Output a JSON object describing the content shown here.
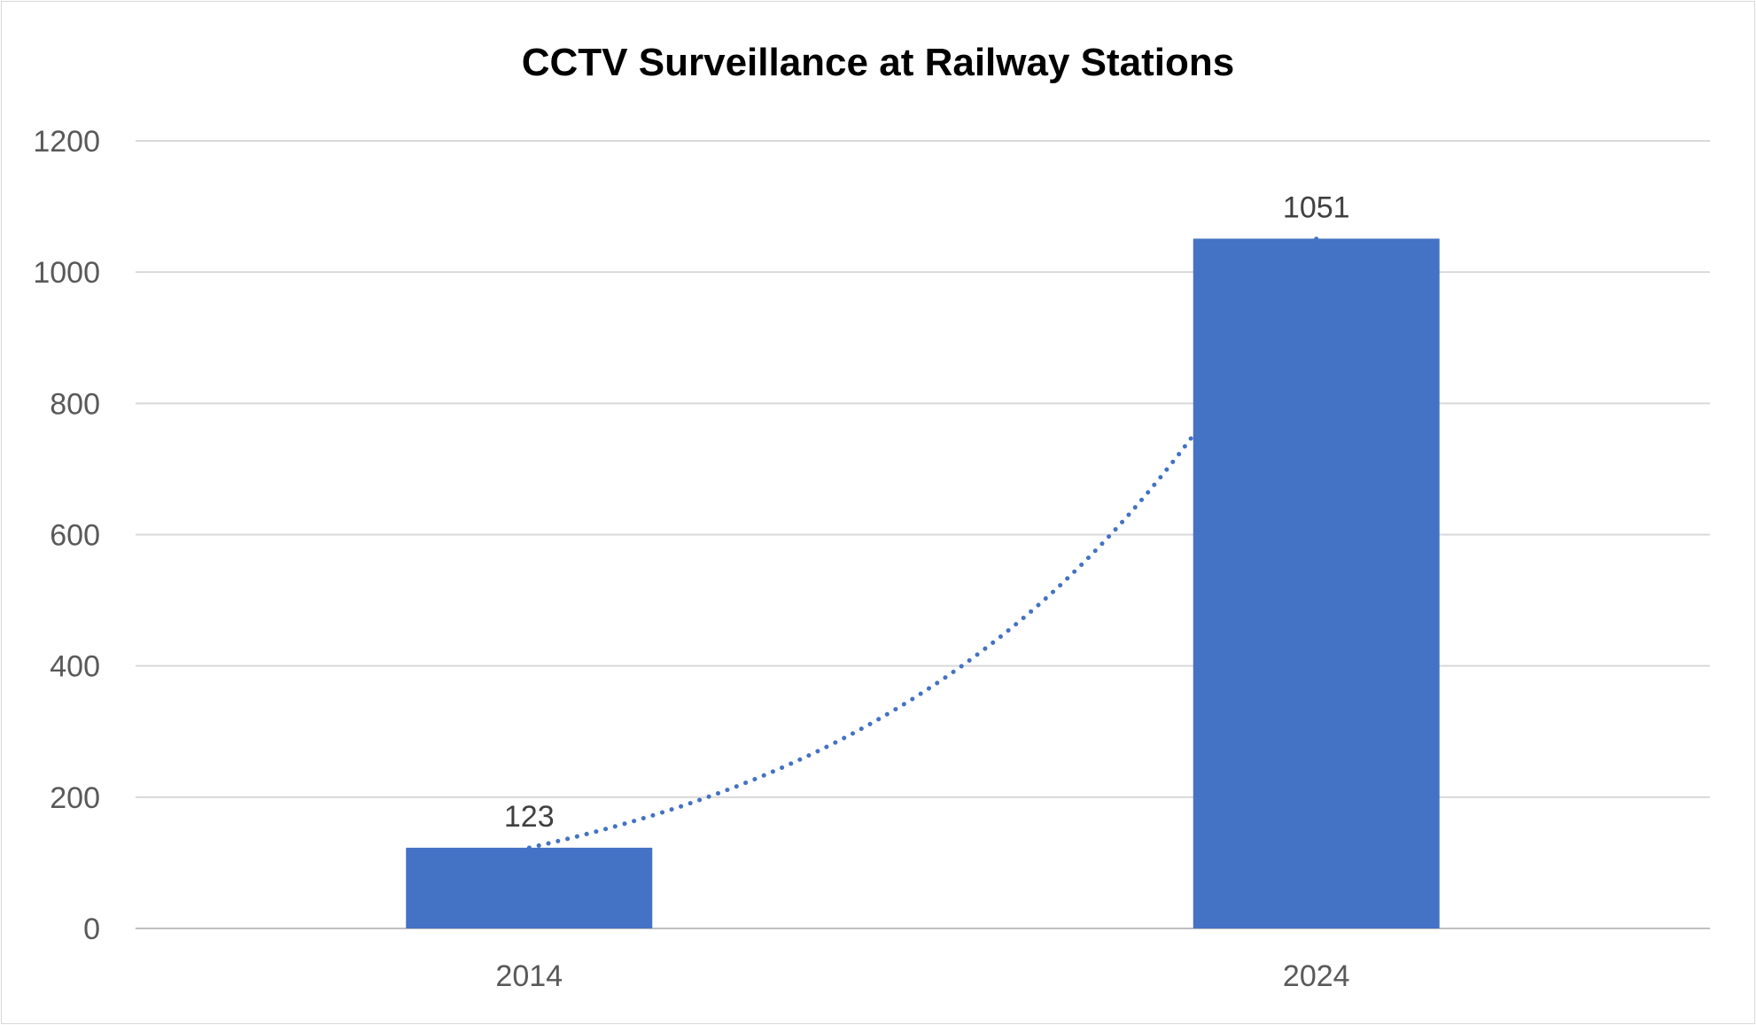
{
  "chart_data": {
    "type": "bar",
    "title": "CCTV Surveillance at Railway Stations",
    "xlabel": "",
    "ylabel": "",
    "categories": [
      "2014",
      "2024"
    ],
    "series": [
      {
        "values": [
          123,
          1051
        ]
      }
    ],
    "data_labels": [
      "123",
      "1051"
    ],
    "ylim": [
      0,
      1200
    ],
    "yticks": [
      0,
      200,
      400,
      600,
      800,
      1000,
      1200
    ],
    "ytick_labels": [
      "0",
      "200",
      "400",
      "600",
      "800",
      "1000",
      "1200"
    ],
    "grid": true,
    "legend": "none",
    "trendline": {
      "type": "exponential",
      "style": "dotted"
    },
    "colors": {
      "bar": "#4472C4",
      "trendline": "#4472C4",
      "grid": "#d9d9d9",
      "axis": "#bfbfbf"
    }
  }
}
